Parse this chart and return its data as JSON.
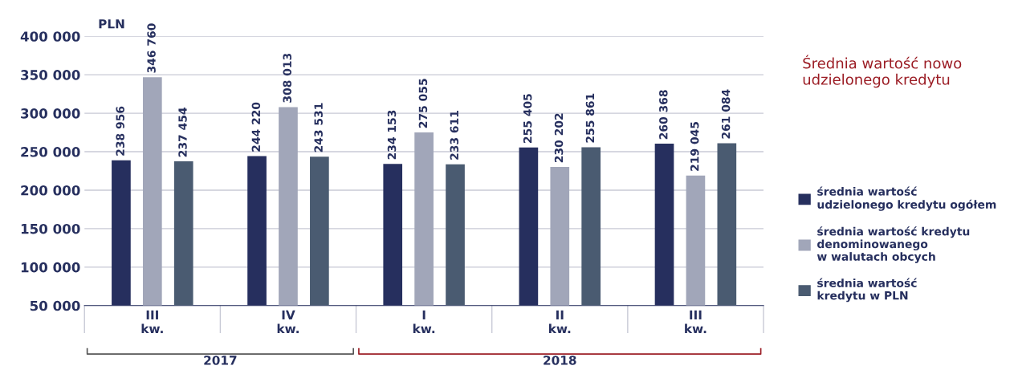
{
  "chart_data": {
    "type": "bar",
    "title": "Średnia wartość nowo udzielonego kredytu",
    "ylabel": "PLN",
    "categories": [
      "III\nkw.",
      "IV\nkw.",
      "I\nkw.",
      "II\nkw.",
      "III\nkw."
    ],
    "series": [
      {
        "name": "średnia wartość\nudzielonego kredytu ogółem",
        "color": "#262f5e",
        "values": [
          238956,
          244220,
          234153,
          255405,
          260368
        ]
      },
      {
        "name": "średnia wartość kredytu\ndenominowanego\nw walutach obcych",
        "color": "#a1a6b9",
        "values": [
          346760,
          308013,
          275055,
          230202,
          219045
        ]
      },
      {
        "name": "średnia wartość\nkredytu w PLN",
        "color": "#4a5b71",
        "values": [
          237454,
          243531,
          233611,
          255861,
          261084
        ]
      }
    ],
    "ylim": [
      50000,
      400000
    ],
    "yticks": [
      {
        "value": 50000,
        "label": "50 000"
      },
      {
        "value": 100000,
        "label": "100 000"
      },
      {
        "value": 150000,
        "label": "150 000"
      },
      {
        "value": 200000,
        "label": "200 000"
      },
      {
        "value": 250000,
        "label": "250 000"
      },
      {
        "value": 300000,
        "label": "300 000"
      },
      {
        "value": 350000,
        "label": "350 000"
      },
      {
        "value": 400000,
        "label": "400 000"
      }
    ],
    "grid": "y",
    "legend": "right",
    "data_labels": true,
    "annotations": [
      "2017",
      "2018"
    ]
  }
}
